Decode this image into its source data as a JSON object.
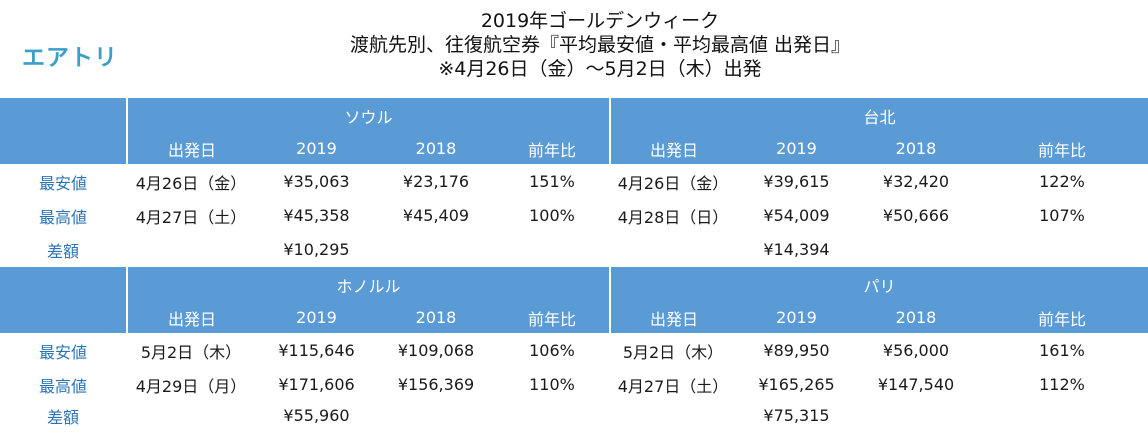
{
  "logo": "エアトリ",
  "title": {
    "line1": "2019年ゴールデンウィーク",
    "line2": "渡航先別、往復航空券『平均最安値・平均最高値 出発日』",
    "line3": "※4月26日（金）～5月2日（木）出発"
  },
  "columns": {
    "departure": "出発日",
    "y2019": "2019",
    "y2018": "2018",
    "yoy": "前年比"
  },
  "row_labels": {
    "min": "最安値",
    "max": "最高値",
    "diff": "差額"
  },
  "blocks": [
    {
      "left": {
        "city": "ソウル",
        "min": {
          "date": "4月26日（金）",
          "y2019": "¥35,063",
          "y2018": "¥23,176",
          "yoy": "151%"
        },
        "max": {
          "date": "4月27日（土）",
          "y2019": "¥45,358",
          "y2018": "¥45,409",
          "yoy": "100%"
        },
        "diff": "¥10,295"
      },
      "right": {
        "city": "台北",
        "min": {
          "date": "4月26日（金）",
          "y2019": "¥39,615",
          "y2018": "¥32,420",
          "yoy": "122%"
        },
        "max": {
          "date": "4月28日（日）",
          "y2019": "¥54,009",
          "y2018": "¥50,666",
          "yoy": "107%"
        },
        "diff": "¥14,394"
      }
    },
    {
      "left": {
        "city": "ホノルル",
        "min": {
          "date": "5月2日（木）",
          "y2019": "¥115,646",
          "y2018": "¥109,068",
          "yoy": "106%"
        },
        "max": {
          "date": "4月29日（月）",
          "y2019": "¥171,606",
          "y2018": "¥156,369",
          "yoy": "110%"
        },
        "diff": "¥55,960"
      },
      "right": {
        "city": "パリ",
        "min": {
          "date": "5月2日（木）",
          "y2019": "¥89,950",
          "y2018": "¥56,000",
          "yoy": "161%"
        },
        "max": {
          "date": "4月27日（土）",
          "y2019": "¥165,265",
          "y2018": "¥147,540",
          "yoy": "112%"
        },
        "diff": "¥75,315"
      }
    }
  ]
}
